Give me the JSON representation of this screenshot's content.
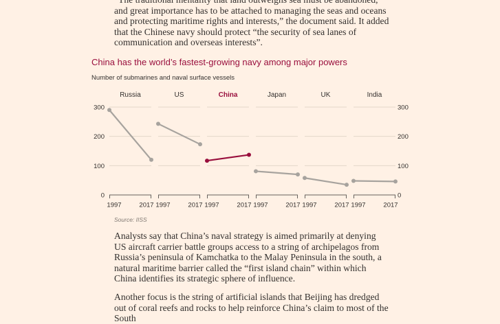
{
  "article": {
    "para_top": "“The traditional mentality that land outweighs sea must be abandoned, and great importance has to be attached to managing the seas and oceans and protecting maritime rights and interests,” the document said. It added that the Chinese navy should protect “the security of sea lanes of communication and overseas interests”.",
    "para_mid": "Analysts say that China’s naval strategy is aimed primarily at denying US aircraft carrier battle groups access to a string of archipelagos from Russia’s peninsula of Kamchatka to the Malay Peninsula in the south, a natural maritime barrier called the “first island chain” within which China identifies its strategic sphere of influence.",
    "para_bot": "Another focus is the string of artificial islands that Beijing has dredged out of coral reefs and rocks to help reinforce China’s claim to most of the South"
  },
  "chart_data": {
    "type": "line",
    "title": "China has the world’s fastest-growing navy among major powers",
    "subtitle": "Number of submarines and naval surface vessels",
    "source": "Source: IISS",
    "ylim": [
      0,
      300
    ],
    "yticks": [
      0,
      100,
      200,
      300
    ],
    "x": [
      "1997",
      "2017"
    ],
    "grid": true,
    "highlight_color": "#990f3d",
    "base_color": "#a7a39e",
    "panels": [
      {
        "name": "Russia",
        "values": [
          290,
          120
        ],
        "highlight": false
      },
      {
        "name": "US",
        "values": [
          243,
          173
        ],
        "highlight": false
      },
      {
        "name": "China",
        "values": [
          117,
          137
        ],
        "highlight": true
      },
      {
        "name": "Japan",
        "values": [
          81,
          70
        ],
        "highlight": false
      },
      {
        "name": "UK",
        "values": [
          58,
          35
        ],
        "highlight": false
      },
      {
        "name": "India",
        "values": [
          48,
          46
        ],
        "highlight": false
      }
    ]
  }
}
